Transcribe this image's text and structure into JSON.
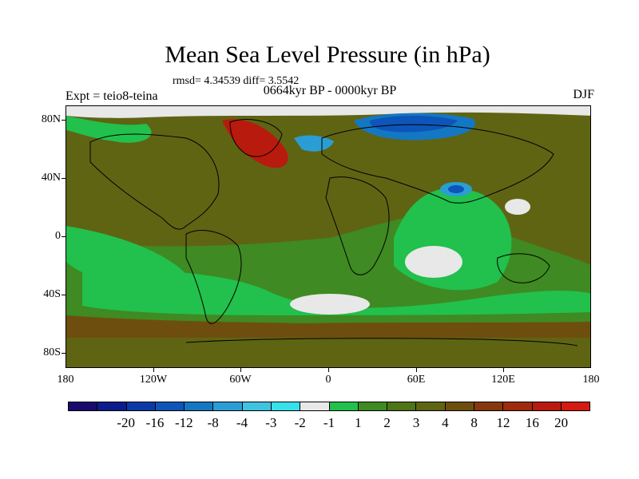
{
  "title": "Mean Sea Level Pressure (in hPa)",
  "stats": "rmsd= 4.34539 diff= 3.5542",
  "period": "0664kyr BP - 0000kyr BP",
  "experiment": "Expt = teio8-teina",
  "season": "DJF",
  "lat_labels": [
    "80N",
    "40N",
    "0",
    "40S",
    "80S"
  ],
  "lon_labels": [
    "180",
    "120W",
    "60W",
    "0",
    "60E",
    "120E",
    "180"
  ],
  "colorbar": {
    "colors": [
      "#1a0a6e",
      "#0b1d8c",
      "#0a3aa8",
      "#0d55b8",
      "#1477c4",
      "#2a9ed4",
      "#3ec3e0",
      "#38e0ec",
      "#e8e8e8",
      "#22c04c",
      "#3f8a22",
      "#4e7418",
      "#5f6413",
      "#6e4e0e",
      "#86380d",
      "#a02a0c",
      "#b81a0e",
      "#d61a10"
    ],
    "labels": [
      "-20",
      "-16",
      "-12",
      "-8",
      "-4",
      "-3",
      "-2",
      "-1",
      "1",
      "2",
      "3",
      "4",
      "8",
      "12",
      "16",
      "20"
    ]
  }
}
